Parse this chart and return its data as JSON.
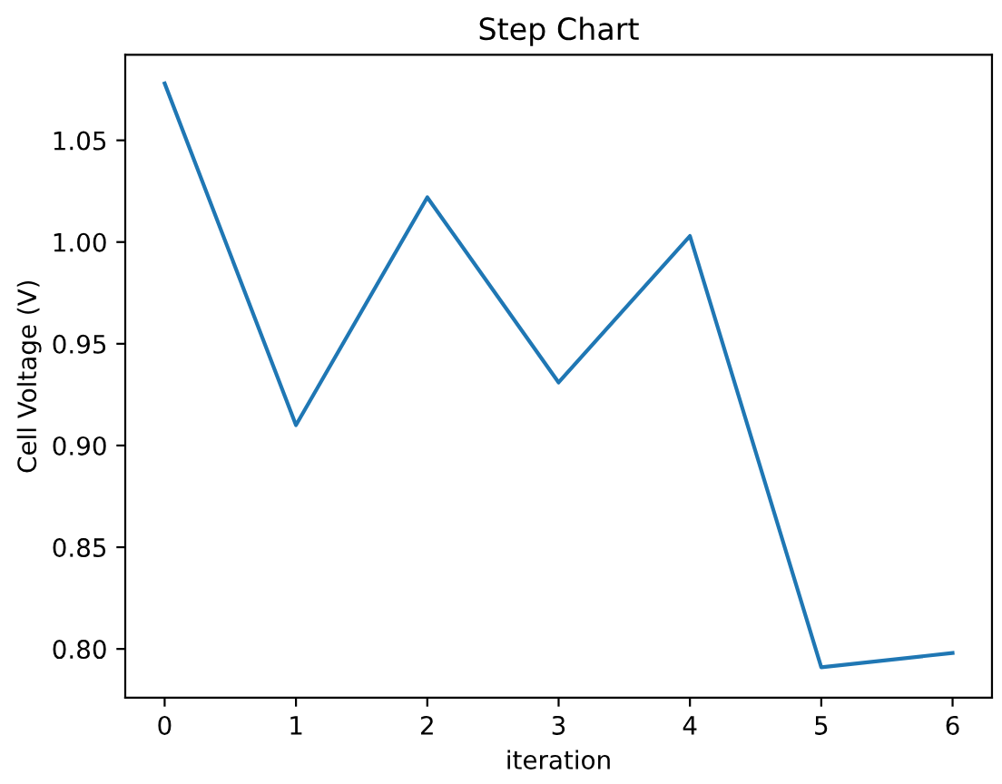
{
  "chart_data": {
    "type": "line",
    "title": "Step Chart",
    "xlabel": "iteration",
    "ylabel": "Cell Voltage (V)",
    "x": [
      0,
      1,
      2,
      3,
      4,
      5,
      6
    ],
    "series": [
      {
        "color": "#1f77b4",
        "values": [
          1.078,
          0.91,
          1.022,
          0.931,
          1.003,
          0.791,
          0.798
        ]
      }
    ],
    "xlim": [
      -0.3,
      6.3
    ],
    "ylim": [
      0.776,
      1.092
    ],
    "xticks": [
      0,
      1,
      2,
      3,
      4,
      5,
      6
    ],
    "yticks": [
      {
        "value": 0.8,
        "label": "0.80"
      },
      {
        "value": 0.85,
        "label": "0.85"
      },
      {
        "value": 0.9,
        "label": "0.90"
      },
      {
        "value": 0.95,
        "label": "0.95"
      },
      {
        "value": 1.0,
        "label": "1.00"
      },
      {
        "value": 1.05,
        "label": "1.05"
      }
    ],
    "grid": false,
    "marker": "none",
    "line_style": "solid"
  }
}
